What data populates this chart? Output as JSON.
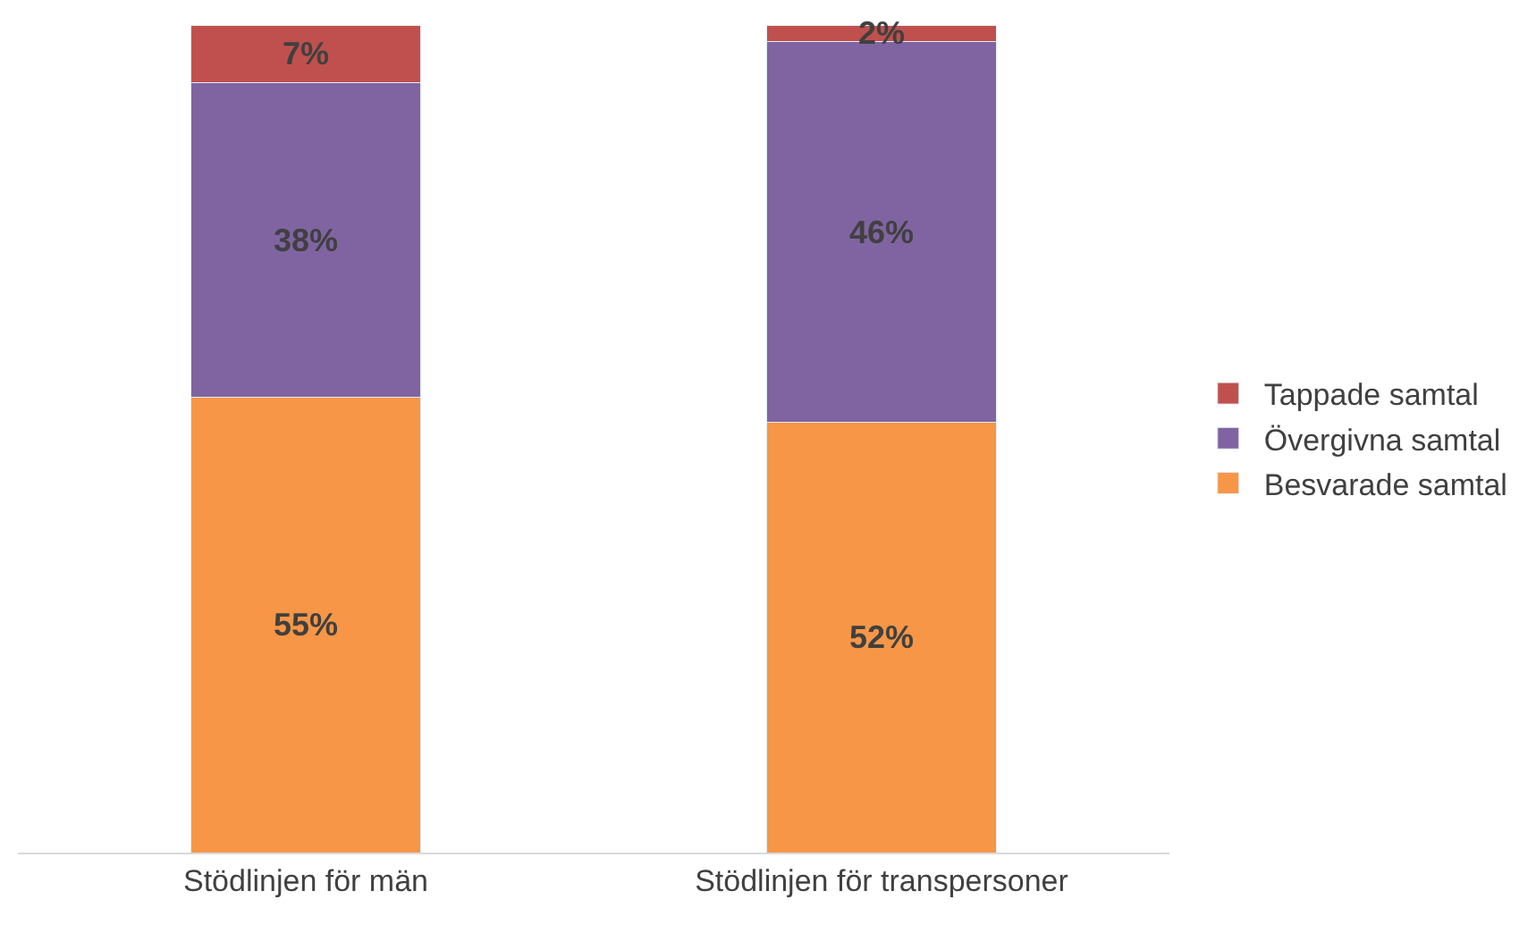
{
  "chart_data": {
    "type": "bar",
    "stacked": true,
    "categories": [
      "Stödlinjen för män",
      "Stödlinjen för transpersoner"
    ],
    "series": [
      {
        "name": "Besvarade samtal",
        "color": "#f79646",
        "values": [
          55,
          52
        ],
        "value_labels": [
          "55%",
          "52%"
        ]
      },
      {
        "name": "Övergivna samtal",
        "color": "#8064a2",
        "values": [
          38,
          46
        ],
        "value_labels": [
          "38%",
          "46%"
        ]
      },
      {
        "name": "Tappade samtal",
        "color": "#c0504d",
        "values": [
          7,
          2
        ],
        "value_labels": [
          "7%",
          "2%"
        ]
      }
    ],
    "ylim": [
      0,
      100
    ],
    "tick_labels": "x",
    "legend": "right"
  }
}
